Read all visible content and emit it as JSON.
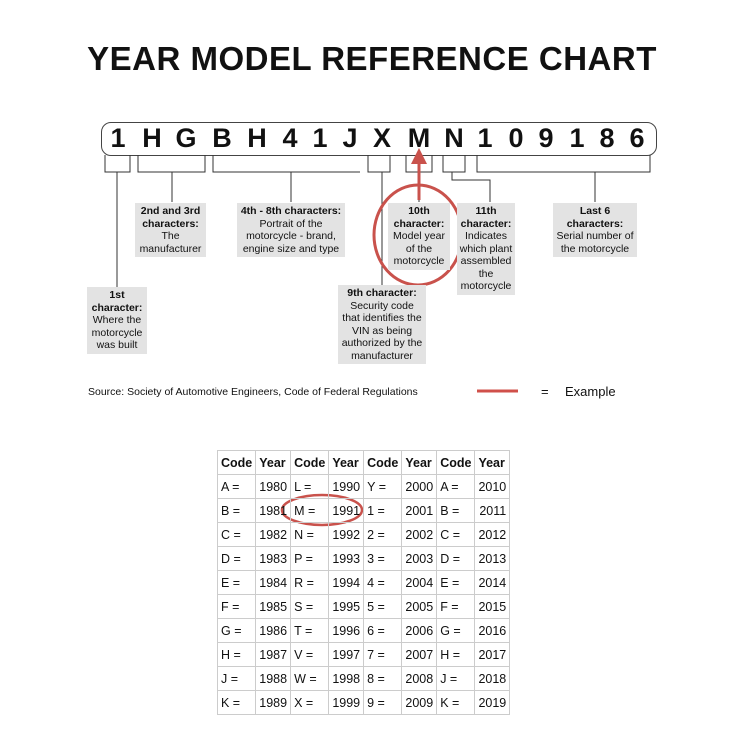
{
  "title": "YEAR MODEL REFERENCE CHART",
  "vin": [
    "1",
    "H",
    "G",
    "B",
    "H",
    "4",
    "1",
    "J",
    "X",
    "M",
    "N",
    "1",
    "0",
    "9",
    "1",
    "8",
    "6"
  ],
  "labels": {
    "first": {
      "head": "1st character:",
      "body": "Where the motorcycle was built"
    },
    "second_third": {
      "head": "2nd and 3rd characters:",
      "body": "The manufacturer"
    },
    "fourth_eighth": {
      "head": "4th - 8th characters:",
      "body": "Portrait of the motorcycle - brand, engine size and type"
    },
    "ninth": {
      "head": "9th character:",
      "body": "Security code that identifies the VIN as being authorized by the manufacturer"
    },
    "tenth": {
      "head": "10th character:",
      "body": "Model year of the motorcycle"
    },
    "eleventh": {
      "head": "11th character:",
      "body": "Indicates which plant assembled the motorcycle"
    },
    "last6": {
      "head": "Last 6 characters:",
      "body": "Serial number of the motorcycle"
    }
  },
  "source": "Source:  Society of Automotive Engineers, Code of Federal Regulations",
  "legend": {
    "equals": "=",
    "label": "Example",
    "color": "#d0504a"
  },
  "table": {
    "headers": [
      "Code",
      "Year",
      "Code",
      "Year",
      "Code",
      "Year",
      "Code",
      "Year"
    ],
    "rows": [
      [
        "A =",
        "1980",
        "L =",
        "1990",
        "Y =",
        "2000",
        "A =",
        "2010"
      ],
      [
        "B =",
        "1981",
        "M =",
        "1991",
        "1 =",
        "2001",
        "B =",
        "2011"
      ],
      [
        "C =",
        "1982",
        "N =",
        "1992",
        "2 =",
        "2002",
        "C =",
        "2012"
      ],
      [
        "D =",
        "1983",
        "P =",
        "1993",
        "3 =",
        "2003",
        "D =",
        "2013"
      ],
      [
        "E =",
        "1984",
        "R =",
        "1994",
        "4 =",
        "2004",
        "E =",
        "2014"
      ],
      [
        "F =",
        "1985",
        "S =",
        "1995",
        "5 =",
        "2005",
        "F =",
        "2015"
      ],
      [
        "G =",
        "1986",
        "T =",
        "1996",
        "6 =",
        "2006",
        "G =",
        "2016"
      ],
      [
        "H =",
        "1987",
        "V =",
        "1997",
        "7 =",
        "2007",
        "H =",
        "2017"
      ],
      [
        "J =",
        "1988",
        "W =",
        "1998",
        "8 =",
        "2008",
        "J =",
        "2018"
      ],
      [
        "K =",
        "1989",
        "X =",
        "1999",
        "9 =",
        "2009",
        "K =",
        "2019"
      ]
    ]
  }
}
